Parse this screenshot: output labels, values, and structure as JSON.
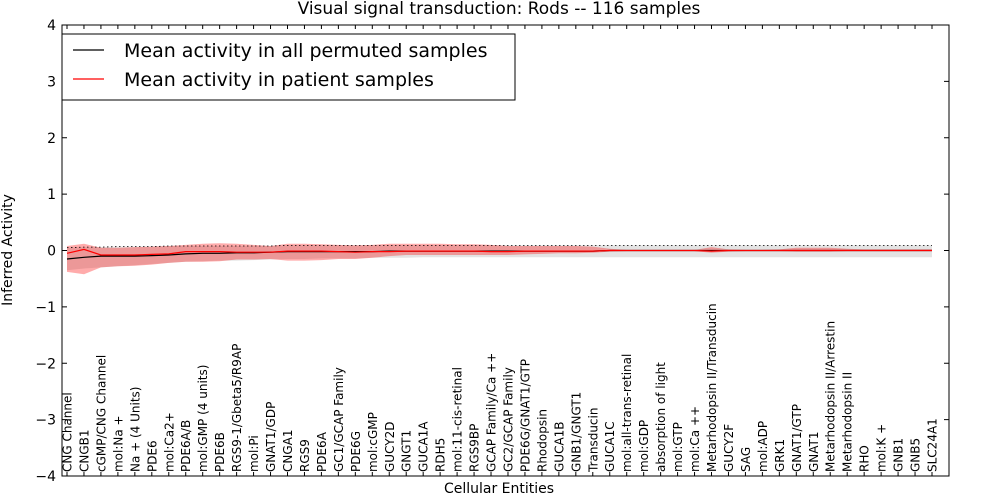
{
  "chart_data": {
    "type": "line",
    "title": "Visual signal transduction: Rods -- 116 samples",
    "xlabel": "Cellular Entities",
    "ylabel": "Inferred Activity",
    "ylim": [
      -4,
      4
    ],
    "yticks": [
      "−4",
      "−3",
      "−2",
      "−1",
      "0",
      "1",
      "2",
      "3",
      "4"
    ],
    "categories": [
      "CNG Channel",
      "CNGB1",
      "cGMP/CNG Channel",
      "mol:Na +",
      "Na + (4 Units)",
      "PDE6",
      "mol:Ca2+",
      "PDE6A/B",
      "mol:GMP (4 units)",
      "PDE6B",
      "RGS9-1/Gbeta5/R9AP",
      "mol:Pi",
      "GNAT1/GDP",
      "CNGA1",
      "RGS9",
      "PDE6A",
      "GC1/GCAP Family",
      "PDE6G",
      "mol:cGMP",
      "GUCY2D",
      "GNGT1",
      "GUCA1A",
      "RDH5",
      "mol:11-cis-retinal",
      "RGS9BP",
      "GCAP Family/Ca ++",
      "GC2/GCAP Family",
      "PDE6G/GNAT1/GTP",
      "Rhodopsin",
      "GUCA1B",
      "GNB1/GNGT1",
      "Transducin",
      "GUCA1C",
      "mol:all-trans-retinal",
      "mol:GDP",
      "absorption of light",
      "mol:GTP",
      "mol:Ca ++",
      "Metarhodopsin II/Transducin",
      "GUCY2F",
      "SAG",
      "mol:ADP",
      "GRK1",
      "GNAT1/GTP",
      "GNAT1",
      "Metarhodopsin II/Arrestin",
      "Metarhodopsin II",
      "RHO",
      "mol:K +",
      "GNB1",
      "GNB5",
      "SLC24A1"
    ],
    "legend_position": "top-left",
    "series": [
      {
        "name": "Mean activity in all permuted samples",
        "color": "#000000",
        "values": [
          -0.15,
          -0.12,
          -0.1,
          -0.1,
          -0.1,
          -0.09,
          -0.08,
          -0.06,
          -0.05,
          -0.05,
          -0.04,
          -0.04,
          -0.03,
          -0.02,
          -0.02,
          -0.02,
          -0.02,
          -0.02,
          -0.02,
          -0.01,
          -0.01,
          -0.01,
          -0.01,
          -0.01,
          -0.01,
          -0.01,
          -0.01,
          -0.01,
          -0.01,
          -0.01,
          -0.01,
          -0.01,
          0,
          0,
          0,
          0,
          0,
          0,
          0,
          0,
          0,
          0,
          0,
          0,
          0,
          0,
          0,
          0,
          0,
          0,
          0,
          0
        ],
        "band_low": [
          -0.35,
          -0.32,
          -0.3,
          -0.28,
          -0.26,
          -0.24,
          -0.22,
          -0.2,
          -0.19,
          -0.18,
          -0.18,
          -0.17,
          -0.16,
          -0.15,
          -0.15,
          -0.14,
          -0.14,
          -0.14,
          -0.13,
          -0.13,
          -0.13,
          -0.12,
          -0.12,
          -0.12,
          -0.12,
          -0.12,
          -0.12,
          -0.12,
          -0.12,
          -0.12,
          -0.12,
          -0.12,
          -0.12,
          -0.12,
          -0.12,
          -0.12,
          -0.12,
          -0.12,
          -0.12,
          -0.12,
          -0.12,
          -0.12,
          -0.12,
          -0.12,
          -0.12,
          -0.12,
          -0.12,
          -0.12,
          -0.12,
          -0.12,
          -0.12,
          -0.12
        ],
        "band_high": [
          0.05,
          0.06,
          0.06,
          0.07,
          0.07,
          0.07,
          0.08,
          0.08,
          0.08,
          0.08,
          0.08,
          0.08,
          0.08,
          0.09,
          0.09,
          0.09,
          0.09,
          0.09,
          0.09,
          0.09,
          0.09,
          0.09,
          0.09,
          0.09,
          0.09,
          0.09,
          0.09,
          0.09,
          0.09,
          0.09,
          0.09,
          0.09,
          0.09,
          0.09,
          0.09,
          0.09,
          0.09,
          0.09,
          0.09,
          0.09,
          0.09,
          0.09,
          0.09,
          0.09,
          0.09,
          0.09,
          0.09,
          0.09,
          0.09,
          0.09,
          0.09,
          0.09
        ]
      },
      {
        "name": "Mean activity in patient samples",
        "color": "#ff0000",
        "values": [
          -0.05,
          0.02,
          -0.08,
          -0.08,
          -0.08,
          -0.07,
          -0.06,
          -0.02,
          -0.02,
          -0.02,
          -0.03,
          -0.03,
          -0.03,
          -0.01,
          -0.01,
          -0.01,
          -0.02,
          -0.03,
          -0.02,
          -0.02,
          -0.01,
          -0.01,
          -0.01,
          -0.01,
          -0.01,
          -0.02,
          -0.02,
          -0.01,
          -0.01,
          -0.01,
          -0.01,
          -0.01,
          0,
          0,
          0,
          0,
          0,
          0,
          -0.01,
          0,
          0,
          0,
          0,
          0,
          0,
          0,
          0,
          0,
          0,
          0,
          0,
          0
        ],
        "band_low": [
          -0.38,
          -0.42,
          -0.3,
          -0.28,
          -0.27,
          -0.25,
          -0.22,
          -0.2,
          -0.2,
          -0.19,
          -0.16,
          -0.16,
          -0.15,
          -0.18,
          -0.18,
          -0.17,
          -0.15,
          -0.15,
          -0.13,
          -0.1,
          -0.08,
          -0.08,
          -0.08,
          -0.08,
          -0.08,
          -0.08,
          -0.08,
          -0.07,
          -0.06,
          -0.05,
          -0.05,
          -0.04,
          -0.02,
          -0.01,
          -0.01,
          -0.01,
          -0.01,
          -0.01,
          -0.04,
          -0.02,
          -0.01,
          -0.01,
          -0.01,
          -0.02,
          -0.02,
          -0.02,
          -0.01,
          -0.01,
          -0.01,
          -0.01,
          -0.01,
          -0.01
        ],
        "band_high": [
          0.08,
          0.12,
          0.05,
          0.05,
          0.06,
          0.07,
          0.08,
          0.1,
          0.12,
          0.13,
          0.12,
          0.1,
          0.08,
          0.12,
          0.12,
          0.11,
          0.1,
          0.09,
          0.1,
          0.12,
          0.12,
          0.12,
          0.12,
          0.11,
          0.11,
          0.1,
          0.08,
          0.08,
          0.08,
          0.08,
          0.08,
          0.07,
          0.03,
          0.01,
          0.01,
          0.01,
          0.01,
          0.01,
          0.06,
          0.02,
          0.01,
          0.01,
          0.02,
          0.05,
          0.05,
          0.05,
          0.03,
          0.02,
          0.02,
          0.02,
          0.02,
          0.02
        ]
      }
    ]
  }
}
